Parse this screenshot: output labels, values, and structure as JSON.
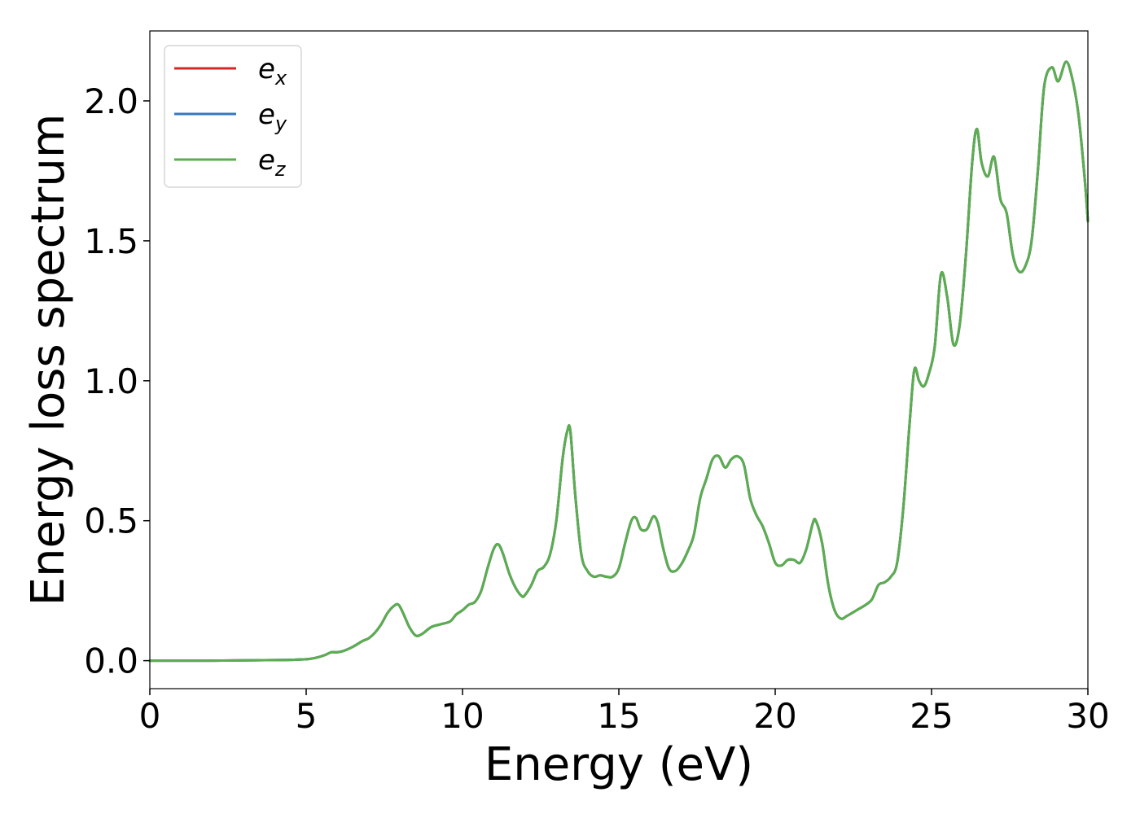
{
  "chart_data": {
    "type": "line",
    "xlabel": "Energy (eV)",
    "ylabel": "Energy loss spectrum",
    "xlim": [
      0,
      30
    ],
    "ylim": [
      -0.1,
      2.25
    ],
    "xticks": [
      0,
      5,
      10,
      15,
      20,
      25,
      30
    ],
    "xtick_labels": [
      "0",
      "5",
      "10",
      "15",
      "20",
      "25",
      "30"
    ],
    "yticks": [
      0.0,
      0.5,
      1.0,
      1.5,
      2.0
    ],
    "ytick_labels": [
      "0.0",
      "0.5",
      "1.0",
      "1.5",
      "2.0"
    ],
    "grid": false,
    "legend_position": "top-left",
    "x": [
      0,
      1,
      2,
      3,
      4,
      4.5,
      5,
      5.3,
      5.6,
      5.8,
      6.0,
      6.2,
      6.5,
      6.8,
      7.0,
      7.2,
      7.4,
      7.6,
      7.8,
      7.95,
      8.1,
      8.3,
      8.5,
      8.7,
      9.0,
      9.3,
      9.6,
      9.8,
      10.0,
      10.2,
      10.4,
      10.6,
      10.8,
      11.0,
      11.15,
      11.3,
      11.5,
      11.7,
      11.9,
      12.0,
      12.2,
      12.4,
      12.6,
      12.8,
      13.0,
      13.2,
      13.35,
      13.45,
      13.6,
      13.8,
      14.0,
      14.2,
      14.4,
      14.6,
      14.8,
      15.0,
      15.2,
      15.4,
      15.55,
      15.7,
      15.9,
      16.1,
      16.25,
      16.4,
      16.6,
      16.8,
      17.0,
      17.2,
      17.4,
      17.6,
      17.8,
      18.0,
      18.2,
      18.4,
      18.6,
      18.8,
      19.0,
      19.2,
      19.4,
      19.6,
      19.8,
      20.0,
      20.2,
      20.4,
      20.6,
      20.8,
      21.0,
      21.2,
      21.3,
      21.5,
      21.7,
      21.9,
      22.1,
      22.3,
      22.6,
      22.9,
      23.1,
      23.3,
      23.5,
      23.7,
      23.9,
      24.1,
      24.3,
      24.45,
      24.6,
      24.75,
      24.9,
      25.1,
      25.3,
      25.5,
      25.7,
      25.9,
      26.1,
      26.3,
      26.45,
      26.6,
      26.8,
      27.0,
      27.2,
      27.4,
      27.6,
      27.8,
      28.0,
      28.2,
      28.4,
      28.6,
      28.85,
      29.05,
      29.3,
      29.5,
      29.7,
      29.9,
      30.0
    ],
    "series": [
      {
        "name": "e_x",
        "color": "#d62728",
        "values": [
          0,
          0,
          0,
          0.001,
          0.002,
          0.003,
          0.005,
          0.01,
          0.02,
          0.03,
          0.03,
          0.035,
          0.05,
          0.07,
          0.08,
          0.1,
          0.13,
          0.17,
          0.195,
          0.2,
          0.17,
          0.12,
          0.09,
          0.095,
          0.12,
          0.13,
          0.14,
          0.165,
          0.18,
          0.2,
          0.21,
          0.25,
          0.33,
          0.4,
          0.415,
          0.38,
          0.31,
          0.26,
          0.23,
          0.235,
          0.27,
          0.32,
          0.335,
          0.38,
          0.5,
          0.72,
          0.82,
          0.82,
          0.6,
          0.38,
          0.32,
          0.3,
          0.305,
          0.3,
          0.3,
          0.33,
          0.42,
          0.5,
          0.51,
          0.47,
          0.47,
          0.515,
          0.49,
          0.41,
          0.33,
          0.32,
          0.345,
          0.39,
          0.45,
          0.58,
          0.65,
          0.72,
          0.73,
          0.69,
          0.72,
          0.73,
          0.7,
          0.58,
          0.52,
          0.48,
          0.42,
          0.35,
          0.34,
          0.36,
          0.36,
          0.35,
          0.4,
          0.49,
          0.5,
          0.42,
          0.27,
          0.18,
          0.15,
          0.16,
          0.18,
          0.2,
          0.22,
          0.27,
          0.28,
          0.3,
          0.35,
          0.55,
          0.85,
          1.04,
          1.0,
          0.98,
          1.02,
          1.12,
          1.38,
          1.3,
          1.13,
          1.2,
          1.45,
          1.78,
          1.9,
          1.78,
          1.73,
          1.8,
          1.65,
          1.6,
          1.45,
          1.39,
          1.41,
          1.5,
          1.75,
          2.05,
          2.12,
          2.07,
          2.14,
          2.08,
          1.95,
          1.72,
          1.57
        ]
      },
      {
        "name": "e_y",
        "color": "#3778bf",
        "values": [
          0,
          0,
          0,
          0.001,
          0.002,
          0.003,
          0.005,
          0.01,
          0.02,
          0.03,
          0.03,
          0.035,
          0.05,
          0.07,
          0.08,
          0.1,
          0.13,
          0.17,
          0.195,
          0.2,
          0.17,
          0.12,
          0.09,
          0.095,
          0.12,
          0.13,
          0.14,
          0.165,
          0.18,
          0.2,
          0.21,
          0.25,
          0.33,
          0.4,
          0.415,
          0.38,
          0.31,
          0.26,
          0.23,
          0.235,
          0.27,
          0.32,
          0.335,
          0.38,
          0.5,
          0.72,
          0.82,
          0.82,
          0.6,
          0.38,
          0.32,
          0.3,
          0.305,
          0.3,
          0.3,
          0.33,
          0.42,
          0.5,
          0.51,
          0.47,
          0.47,
          0.515,
          0.49,
          0.41,
          0.33,
          0.32,
          0.345,
          0.39,
          0.45,
          0.58,
          0.65,
          0.72,
          0.73,
          0.69,
          0.72,
          0.73,
          0.7,
          0.58,
          0.52,
          0.48,
          0.42,
          0.35,
          0.34,
          0.36,
          0.36,
          0.35,
          0.4,
          0.49,
          0.5,
          0.42,
          0.27,
          0.18,
          0.15,
          0.16,
          0.18,
          0.2,
          0.22,
          0.27,
          0.28,
          0.3,
          0.35,
          0.55,
          0.85,
          1.04,
          1.0,
          0.98,
          1.02,
          1.12,
          1.38,
          1.3,
          1.13,
          1.2,
          1.45,
          1.78,
          1.9,
          1.78,
          1.73,
          1.8,
          1.65,
          1.6,
          1.45,
          1.39,
          1.41,
          1.5,
          1.75,
          2.05,
          2.12,
          2.07,
          2.14,
          2.08,
          1.95,
          1.72,
          1.57
        ]
      },
      {
        "name": "e_z",
        "color": "#5aae4f",
        "values": [
          0,
          0,
          0,
          0.001,
          0.002,
          0.003,
          0.005,
          0.01,
          0.02,
          0.03,
          0.03,
          0.035,
          0.05,
          0.07,
          0.08,
          0.1,
          0.13,
          0.17,
          0.195,
          0.2,
          0.17,
          0.12,
          0.09,
          0.095,
          0.12,
          0.13,
          0.14,
          0.165,
          0.18,
          0.2,
          0.21,
          0.25,
          0.33,
          0.4,
          0.415,
          0.38,
          0.31,
          0.26,
          0.23,
          0.235,
          0.27,
          0.32,
          0.335,
          0.38,
          0.5,
          0.72,
          0.82,
          0.82,
          0.6,
          0.38,
          0.32,
          0.3,
          0.305,
          0.3,
          0.3,
          0.33,
          0.42,
          0.5,
          0.51,
          0.47,
          0.47,
          0.515,
          0.49,
          0.41,
          0.33,
          0.32,
          0.345,
          0.39,
          0.45,
          0.58,
          0.65,
          0.72,
          0.73,
          0.69,
          0.72,
          0.73,
          0.7,
          0.58,
          0.52,
          0.48,
          0.42,
          0.35,
          0.34,
          0.36,
          0.36,
          0.35,
          0.4,
          0.49,
          0.5,
          0.42,
          0.27,
          0.18,
          0.15,
          0.16,
          0.18,
          0.2,
          0.22,
          0.27,
          0.28,
          0.3,
          0.35,
          0.55,
          0.85,
          1.04,
          1.0,
          0.98,
          1.02,
          1.12,
          1.38,
          1.3,
          1.13,
          1.2,
          1.45,
          1.78,
          1.9,
          1.78,
          1.73,
          1.8,
          1.65,
          1.6,
          1.45,
          1.39,
          1.41,
          1.5,
          1.75,
          2.05,
          2.12,
          2.07,
          2.14,
          2.08,
          1.95,
          1.72,
          1.57
        ]
      }
    ],
    "legend": [
      {
        "base": "e",
        "sub": "x",
        "color": "#d62728"
      },
      {
        "base": "e",
        "sub": "y",
        "color": "#3778bf"
      },
      {
        "base": "e",
        "sub": "z",
        "color": "#5aae4f"
      }
    ]
  }
}
